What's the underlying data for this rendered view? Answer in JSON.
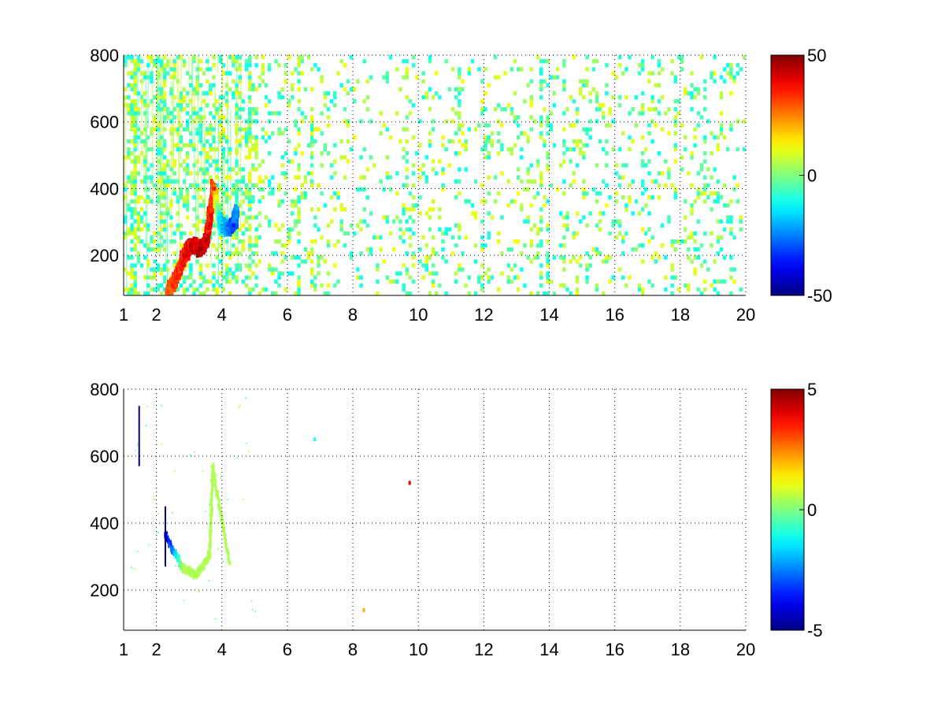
{
  "chart_data": [
    {
      "type": "heatmap",
      "title": "",
      "xlabel": "",
      "ylabel": "",
      "xlim": [
        1,
        20
      ],
      "ylim": [
        80,
        800
      ],
      "xticks": [
        1,
        2,
        4,
        6,
        8,
        10,
        12,
        14,
        16,
        18,
        20
      ],
      "xtick_labels": [
        "1",
        "2",
        "4",
        "6",
        "8",
        "10",
        "12",
        "14",
        "16",
        "18",
        "20"
      ],
      "yticks": [
        200,
        400,
        600,
        800
      ],
      "ytick_labels": [
        "200",
        "400",
        "600",
        "800"
      ],
      "grid": true,
      "colormap": "jet",
      "colorbar": {
        "range": [
          -50,
          50
        ],
        "ticks": [
          50,
          0,
          -50
        ],
        "tick_labels": [
          "50",
          "0",
          "-50"
        ]
      },
      "features": [
        {
          "x": 2.3,
          "y": 90,
          "value": 30
        },
        {
          "x": 2.6,
          "y": 140,
          "value": 35
        },
        {
          "x": 2.8,
          "y": 200,
          "value": 40
        },
        {
          "x": 3.0,
          "y": 230,
          "value": 45
        },
        {
          "x": 3.3,
          "y": 220,
          "value": 48
        },
        {
          "x": 3.5,
          "y": 250,
          "value": 45
        },
        {
          "x": 3.6,
          "y": 320,
          "value": 40
        },
        {
          "x": 3.7,
          "y": 400,
          "value": 35
        },
        {
          "x": 3.9,
          "y": 300,
          "value": -15
        },
        {
          "x": 4.1,
          "y": 280,
          "value": -25
        },
        {
          "x": 4.3,
          "y": 290,
          "value": -35
        },
        {
          "x": 4.4,
          "y": 330,
          "value": -25
        }
      ]
    },
    {
      "type": "heatmap",
      "title": "",
      "xlabel": "",
      "ylabel": "",
      "xlim": [
        1,
        20
      ],
      "ylim": [
        80,
        800
      ],
      "xticks": [
        1,
        2,
        4,
        6,
        8,
        10,
        12,
        14,
        16,
        18,
        20
      ],
      "xtick_labels": [
        "1",
        "2",
        "4",
        "6",
        "8",
        "10",
        "12",
        "14",
        "16",
        "18",
        "20"
      ],
      "yticks": [
        200,
        400,
        600,
        800
      ],
      "ytick_labels": [
        "200",
        "400",
        "600",
        "800"
      ],
      "grid": true,
      "colormap": "jet",
      "colorbar": {
        "range": [
          -5,
          5
        ],
        "ticks": [
          5,
          0,
          -5
        ],
        "tick_labels": [
          "5",
          "0",
          "-5"
        ]
      },
      "features": [
        {
          "x": 1.45,
          "y": 660,
          "value": -5
        },
        {
          "x": 2.25,
          "y": 360,
          "value": -5
        },
        {
          "x": 2.8,
          "y": 260,
          "value": 0.5
        },
        {
          "x": 3.2,
          "y": 240,
          "value": 0.5
        },
        {
          "x": 3.6,
          "y": 300,
          "value": 0.5
        },
        {
          "x": 3.7,
          "y": 560,
          "value": 0.5
        },
        {
          "x": 4.2,
          "y": 280,
          "value": 0.5
        },
        {
          "x": 6.8,
          "y": 650,
          "value": -1
        },
        {
          "x": 8.3,
          "y": 140,
          "value": 2
        },
        {
          "x": 9.7,
          "y": 520,
          "value": 4
        }
      ]
    }
  ]
}
